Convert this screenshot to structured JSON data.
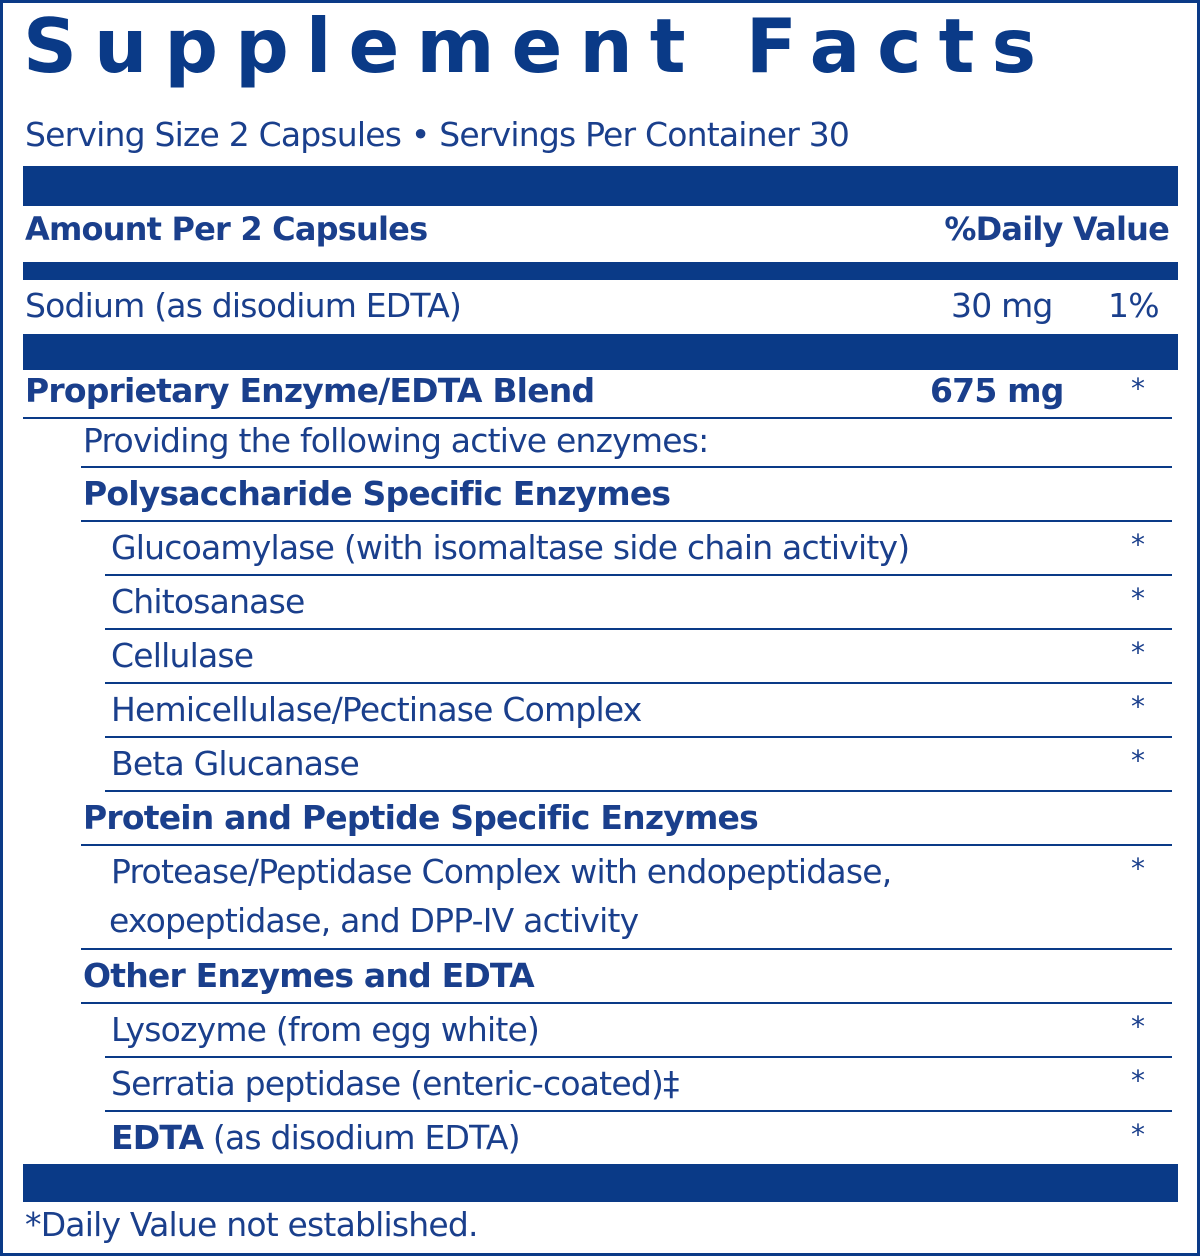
{
  "title": "Supplement Facts",
  "serving": "Serving Size 2 Capsules • Servings Per Container 30",
  "header": {
    "amount": "Amount Per 2 Capsules",
    "dv": "%Daily Value"
  },
  "sodium": {
    "name": "Sodium (as disodium EDTA)",
    "amount": "30 mg",
    "dv": "1%"
  },
  "blend": {
    "name": "Proprietary Enzyme/EDTA Blend",
    "amount": "675 mg",
    "dv": "*",
    "providing": "Providing the following active enzymes:",
    "groups": [
      {
        "name": "Polysaccharide Specific Enzymes",
        "items": [
          "Glucoamylase (with isomaltase side chain activity)",
          "Chitosanase",
          "Cellulase",
          "Hemicellulase/Pectinase Complex",
          "Beta Glucanase"
        ]
      },
      {
        "name": "Protein and Peptide Specific Enzymes",
        "items": [
          "Protease/Peptidase Complex with endopeptidase,",
          "exopeptidase, and DPP-IV activity"
        ]
      },
      {
        "name": "Other Enzymes and EDTA",
        "items": [
          "Lysozyme (from egg white)",
          "Serratia peptidase (enteric-coated)‡"
        ],
        "edta": {
          "bold": "EDTA",
          "rest": " (as disodium EDTA)"
        }
      }
    ]
  },
  "star": "*",
  "footnote": "*Daily Value not established.",
  "colors": {
    "brand_blue": "#0a3a87",
    "text_blue": "#1a3f8c"
  }
}
